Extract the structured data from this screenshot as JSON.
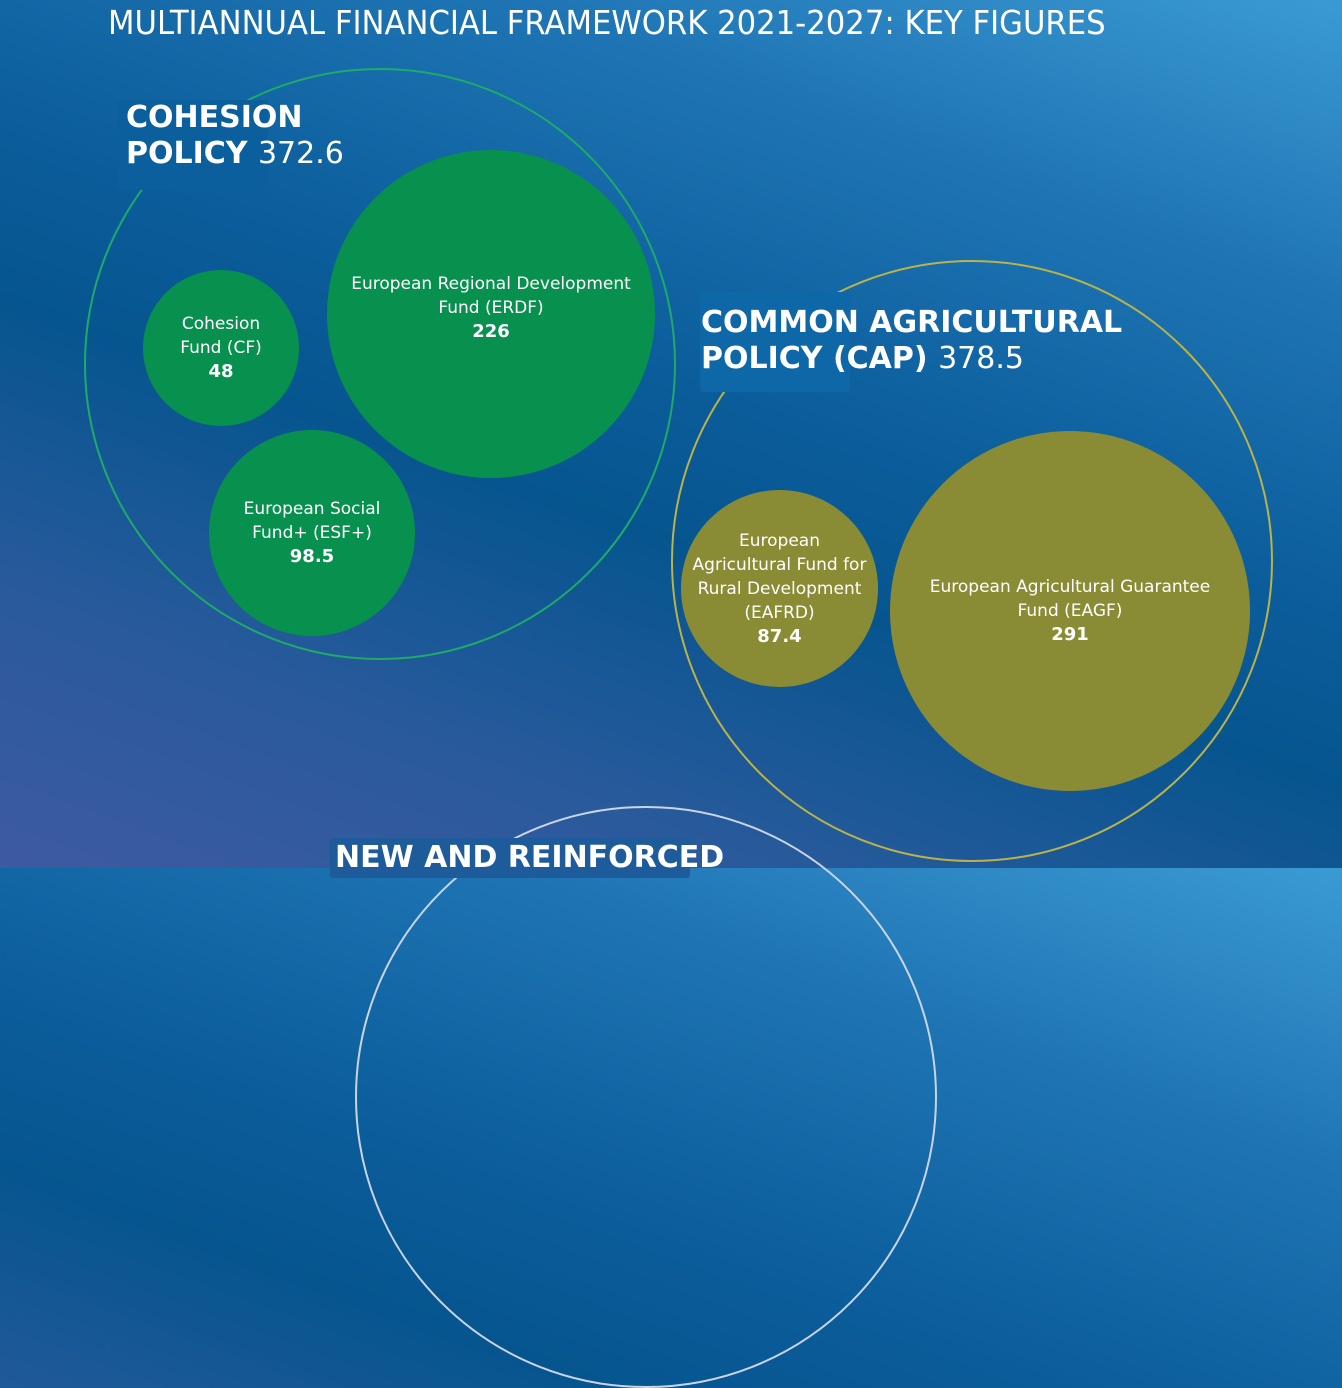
{
  "title": "MULTIANNUAL FINANCIAL FRAMEWORK 2021-2027: KEY FIGURES",
  "colors": {
    "cohesion": "#08914e",
    "cap": "#8a8c35",
    "new_ring": "#c9d4e6"
  },
  "cohesion": {
    "heading_line1": "COHESION",
    "heading_line2": "POLICY",
    "value": "372.6",
    "funds": [
      {
        "line1": "Cohesion",
        "line2": "Fund (CF)",
        "value": "48"
      },
      {
        "line1": "European Regional Development",
        "line2": "Fund (ERDF)",
        "value": "226"
      },
      {
        "line1": "European Social",
        "line2": "Fund+ (ESF+)",
        "value": "98.5"
      }
    ]
  },
  "cap": {
    "heading_line1": "COMMON AGRICULTURAL",
    "heading_line2": "POLICY (CAP)",
    "value": "378.5",
    "funds": [
      {
        "line1": "European",
        "line2": "Agricultural Fund for",
        "line3": "Rural Development",
        "line4": "(EAFRD)",
        "value": "87.4"
      },
      {
        "line1": "European Agricultural Guarantee",
        "line2": "Fund (EAGF)",
        "value": "291"
      }
    ]
  },
  "new_reinforced": {
    "heading_line1": "NEW AND REINFORCED"
  }
}
